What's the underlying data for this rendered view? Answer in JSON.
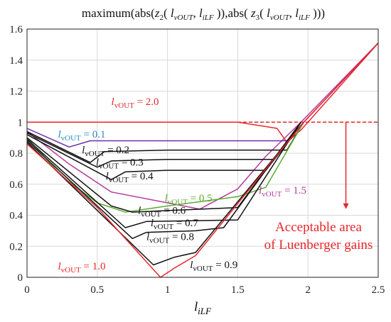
{
  "chart_data": {
    "type": "line",
    "title": {
      "p1": "maximum(abs(",
      "z2": "z",
      "z2sub": "2",
      "p2": "( ",
      "l1": "l",
      "l1sub": "vOUT",
      "comma1": ", ",
      "l2": "l",
      "l2sub": "iLF",
      "p3": " )),abs( ",
      "z3": "z",
      "z3sub": "3",
      "p4": "( ",
      "l3": "l",
      "l3sub": "vOUT",
      "comma2": ", ",
      "l4": "l",
      "l4sub": "iLF",
      "p5": " )))"
    },
    "xlabel": {
      "main": "l",
      "sub": "iLF"
    },
    "ylabel": "",
    "xlim": [
      0,
      2.5
    ],
    "ylim": [
      0,
      1.6
    ],
    "xticks": [
      "0",
      "0.5",
      "1",
      "1.5",
      "2",
      "2.5"
    ],
    "yticks": [
      "0",
      "0.2",
      "0.4",
      "0.6",
      "0.8",
      "1",
      "1.2",
      "1.4",
      "1.6"
    ],
    "grid": true,
    "reference_line": {
      "y": 1.0,
      "style": "dashed",
      "color": "#e8262b"
    },
    "series": [
      {
        "name": "lvOUT = 2.0",
        "color": "#e8262b",
        "x": [
          0,
          0.5,
          1.0,
          1.5,
          1.78,
          1.85,
          1.95,
          2.0,
          2.5
        ],
        "y": [
          1.0,
          1.0,
          1.0,
          1.0,
          0.96,
          0.87,
          0.95,
          1.0,
          1.51
        ]
      },
      {
        "name": "lvOUT = 1.5",
        "color": "#b43a9f",
        "x": [
          0,
          0.3,
          0.6,
          1.0,
          1.23,
          1.5,
          1.7,
          1.95,
          2.5
        ],
        "y": [
          0.94,
          0.73,
          0.55,
          0.48,
          0.44,
          0.57,
          0.78,
          1.0,
          1.51
        ]
      },
      {
        "name": "lvOUT = 0.1",
        "color": "#6a2ea8",
        "x": [
          0,
          0.3,
          0.45,
          1.0,
          1.5,
          1.85,
          1.97,
          2.5
        ],
        "y": [
          0.96,
          0.84,
          0.88,
          0.88,
          0.88,
          0.88,
          1.0,
          1.51
        ]
      },
      {
        "name": "lvOUT = 0.2",
        "color": "#111111",
        "x": [
          0,
          0.45,
          0.55,
          1.0,
          1.85,
          1.97
        ],
        "y": [
          0.94,
          0.74,
          0.81,
          0.82,
          0.82,
          1.0
        ]
      },
      {
        "name": "lvOUT = 0.3",
        "color": "#111111",
        "x": [
          0,
          0.5,
          0.6,
          1.0,
          1.75,
          1.97
        ],
        "y": [
          0.93,
          0.71,
          0.75,
          0.76,
          0.76,
          1.0
        ]
      },
      {
        "name": "lvOUT = 0.4",
        "color": "#111111",
        "x": [
          0,
          0.6,
          0.7,
          1.0,
          1.7,
          1.97
        ],
        "y": [
          0.92,
          0.63,
          0.68,
          0.69,
          0.69,
          1.0
        ]
      },
      {
        "name": "lvOUT = 0.5",
        "color": "#5bab2f",
        "x": [
          0,
          0.25,
          0.5,
          0.7,
          1.0,
          1.5,
          1.7,
          1.97
        ],
        "y": [
          0.9,
          0.65,
          0.48,
          0.42,
          0.46,
          0.52,
          0.58,
          1.0
        ]
      },
      {
        "name": "lvOUT = 0.6",
        "color": "#111111",
        "x": [
          0,
          0.6,
          0.75,
          1.0,
          1.5,
          1.95
        ],
        "y": [
          0.9,
          0.46,
          0.42,
          0.43,
          0.45,
          1.0
        ]
      },
      {
        "name": "lvOUT = 0.7",
        "color": "#111111",
        "x": [
          0,
          0.7,
          0.85,
          1.5,
          1.95
        ],
        "y": [
          0.89,
          0.32,
          0.36,
          0.37,
          1.0
        ]
      },
      {
        "name": "lvOUT = 0.8",
        "color": "#111111",
        "x": [
          0,
          0.75,
          0.85,
          1.2,
          1.4,
          1.95
        ],
        "y": [
          0.88,
          0.25,
          0.29,
          0.3,
          0.32,
          1.0
        ]
      },
      {
        "name": "lvOUT = 0.9",
        "color": "#111111",
        "x": [
          0,
          0.9,
          1.05,
          1.2,
          1.97
        ],
        "y": [
          0.87,
          0.08,
          0.13,
          0.16,
          1.0
        ]
      },
      {
        "name": "lvOUT = 1.0",
        "color": "#e8262b",
        "x": [
          0,
          0.5,
          0.95,
          1.05,
          1.2,
          1.97,
          2.5
        ],
        "y": [
          0.86,
          0.45,
          0.0,
          0.06,
          0.14,
          1.0,
          1.51
        ]
      }
    ],
    "labels": [
      {
        "text": "l",
        "sub": "vOUT",
        "rest": " = 2.0",
        "color": "#e8262b",
        "x": 0.6,
        "y": 1.11
      },
      {
        "text": "l",
        "sub": "vOUT",
        "rest": " = 0.1",
        "color": "#2b8bc9",
        "x": 0.22,
        "y": 0.9
      },
      {
        "text": "l",
        "sub": "vOUT",
        "rest": " = 0.2",
        "color": "#111111",
        "x": 0.39,
        "y": 0.8
      },
      {
        "text": "l",
        "sub": "vOUT",
        "rest": " = 0.3",
        "color": "#111111",
        "x": 0.49,
        "y": 0.72
      },
      {
        "text": "l",
        "sub": "vOUT",
        "rest": " = 0.4",
        "color": "#111111",
        "x": 0.56,
        "y": 0.63
      },
      {
        "text": "l",
        "sub": "vOUT",
        "rest": " = 0.5",
        "color": "#5bab2f",
        "x": 0.98,
        "y": 0.49
      },
      {
        "text": "l",
        "sub": "vOUT",
        "rest": " = 1.5",
        "color": "#b43a9f",
        "x": 1.65,
        "y": 0.54
      },
      {
        "text": "l",
        "sub": "vOUT",
        "rest": " = 0.6",
        "color": "#111111",
        "x": 0.79,
        "y": 0.41
      },
      {
        "text": "l",
        "sub": "vOUT",
        "rest": " = 0.7",
        "color": "#111111",
        "x": 0.88,
        "y": 0.33
      },
      {
        "text": "l",
        "sub": "vOUT",
        "rest": " = 0.8",
        "color": "#111111",
        "x": 0.85,
        "y": 0.24
      },
      {
        "text": "l",
        "sub": "vOUT",
        "rest": " = 1.0",
        "color": "#e8262b",
        "x": 0.22,
        "y": 0.05
      },
      {
        "text": "l",
        "sub": "vOUT",
        "rest": " = 0.9",
        "color": "#111111",
        "x": 1.16,
        "y": 0.06
      }
    ],
    "annotation": {
      "line1": "Acceptable area",
      "line2": "of Luenberger gains",
      "color": "#e8262b",
      "arrow_x": 2.27,
      "arrow_y_from": 1.0,
      "arrow_y_to": 0.44
    }
  }
}
